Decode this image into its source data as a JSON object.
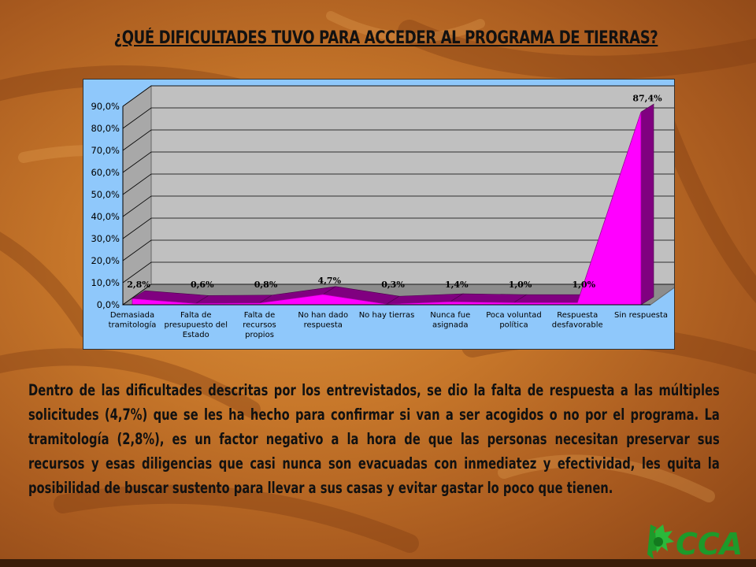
{
  "slide": {
    "title": "¿QUÉ DIFICULTADES TUVO PARA ACCEDER AL PROGRAMA DE TIERRAS?",
    "paragraph": "Dentro de las dificultades descritas por los entrevistados, se dio la falta de respuesta a las múltiples solicitudes (4,7%) que se les ha hecho para confirmar si van a ser acogidos o no por el programa.  La tramitología (2,8%), es un factor negativo a la hora de que las personas necesitan preservar sus recursos y esas diligencias que casi nunca son evacuadas con inmediatez y efectividad, les quita la posibilidad de buscar sustento para llevar a sus casas y evitar gastar lo poco que tienen.",
    "logo_text": "CCA",
    "colors": {
      "chart_background": "#8fc8fb",
      "plot_wall": "#c0c0c0",
      "series_fill": "#ff00ff",
      "series_dark": "#800080",
      "logo_green": "#1d9a2a"
    }
  },
  "chart_data": {
    "type": "area",
    "style": "3d",
    "categories": [
      [
        "Demasiada",
        "tramitología"
      ],
      [
        "Falta de",
        "presupuesto del",
        "Estado"
      ],
      [
        "Falta de",
        "recursos",
        "propios"
      ],
      [
        "No han dado",
        "respuesta"
      ],
      [
        "No hay tierras"
      ],
      [
        "Nunca fue",
        "asignada"
      ],
      [
        "Poca voluntad",
        "política"
      ],
      [
        "Respuesta",
        "desfavorable"
      ],
      [
        "Sin respuesta"
      ]
    ],
    "values": [
      2.8,
      0.6,
      0.8,
      4.7,
      0.3,
      1.4,
      1.0,
      1.0,
      87.4
    ],
    "data_labels": [
      "2,8%",
      "0,6%",
      "0,8%",
      "4,7%",
      "0,3%",
      "1,4%",
      "1,0%",
      "1,0%",
      "87,4%"
    ],
    "y_ticks": [
      "0,0%",
      "10,0%",
      "20,0%",
      "30,0%",
      "40,0%",
      "50,0%",
      "60,0%",
      "70,0%",
      "80,0%",
      "90,0%"
    ],
    "ylim": [
      0,
      90
    ],
    "grid": true,
    "legend": "none",
    "title": "",
    "xlabel": "",
    "ylabel": ""
  }
}
